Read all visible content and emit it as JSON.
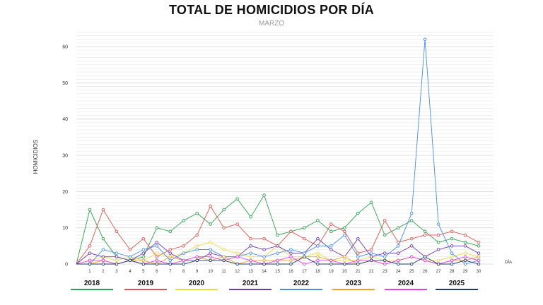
{
  "chart_data": {
    "type": "line",
    "title": "TOTAL DE HOMICIDIOS POR DÍA",
    "subtitle": "MARZO",
    "xlabel": "DÍA",
    "ylabel": "HOMICIDIOS",
    "ylim": [
      0,
      65
    ],
    "y_ticks": [
      0,
      10,
      20,
      30,
      40,
      50,
      60
    ],
    "x": [
      0,
      1,
      2,
      3,
      4,
      5,
      6,
      7,
      8,
      9,
      10,
      11,
      12,
      13,
      14,
      15,
      16,
      17,
      18,
      19,
      20,
      21,
      22,
      23,
      24,
      25,
      26,
      27,
      28,
      29,
      30
    ],
    "x_tick_labels": [
      "1",
      "2",
      "3",
      "4",
      "5",
      "6",
      "7",
      "8",
      "9",
      "10",
      "11",
      "12",
      "13",
      "14",
      "15",
      "16",
      "17",
      "18",
      "19",
      "20",
      "21",
      "22",
      "23",
      "24",
      "25",
      "26",
      "27",
      "28",
      "29",
      "30"
    ],
    "grid": true,
    "legend_position": "bottom",
    "series": [
      {
        "name": "2018",
        "color": "#2e9e4f",
        "values": [
          0,
          15,
          7,
          2,
          1,
          2,
          10,
          9,
          12,
          14,
          11,
          15,
          18,
          13,
          19,
          8,
          9,
          10,
          12,
          9,
          10,
          14,
          17,
          8,
          10,
          12,
          9,
          6,
          7,
          6,
          5
        ]
      },
      {
        "name": "2019",
        "color": "#d9534f",
        "values": [
          0,
          5,
          15,
          9,
          4,
          7,
          2,
          4,
          5,
          8,
          16,
          10,
          11,
          7,
          7,
          5,
          9,
          7,
          5,
          11,
          9,
          3,
          4,
          12,
          6,
          7,
          8,
          8,
          9,
          8,
          6
        ]
      },
      {
        "name": "2020",
        "color": "#e8d84a",
        "values": [
          0,
          1,
          2,
          1,
          2,
          1,
          3,
          2,
          3,
          5,
          6,
          4,
          3,
          2,
          2,
          5,
          2,
          2,
          3,
          1,
          1,
          1,
          2,
          1,
          1,
          2,
          1,
          1,
          2,
          3,
          2
        ]
      },
      {
        "name": "2021",
        "color": "#6a3aa8",
        "values": [
          0,
          3,
          2,
          2,
          1,
          3,
          6,
          3,
          1,
          1,
          3,
          2,
          2,
          5,
          4,
          5,
          3,
          3,
          7,
          4,
          2,
          7,
          2,
          3,
          3,
          5,
          2,
          4,
          5,
          5,
          3
        ]
      },
      {
        "name": "2022",
        "color": "#4a8ee0",
        "values": [
          0,
          0,
          4,
          3,
          2,
          4,
          5,
          1,
          3,
          4,
          4,
          2,
          2,
          3,
          2,
          3,
          4,
          3,
          5,
          5,
          8,
          2,
          3,
          2,
          5,
          14,
          62,
          11,
          3,
          0,
          1
        ]
      },
      {
        "name": "2023",
        "color": "#f0a030",
        "values": [
          0,
          0,
          1,
          0,
          1,
          1,
          0,
          2,
          1,
          2,
          1,
          2,
          0,
          1,
          1,
          1,
          1,
          2,
          2,
          1,
          2,
          0,
          1,
          0,
          1,
          2,
          1,
          0,
          1,
          1,
          2
        ]
      },
      {
        "name": "2024",
        "color": "#e040e0",
        "values": [
          0,
          1,
          1,
          0,
          1,
          0,
          1,
          0,
          1,
          2,
          2,
          1,
          2,
          1,
          0,
          1,
          2,
          0,
          1,
          1,
          0,
          1,
          1,
          0,
          1,
          2,
          1,
          0,
          1,
          2,
          1
        ]
      },
      {
        "name": "2025",
        "color": "#1f3a66",
        "values": [
          0,
          0,
          0,
          0,
          1,
          0,
          0,
          0,
          0,
          1,
          1,
          1,
          0,
          0,
          0,
          0,
          0,
          2,
          0,
          0,
          0,
          0,
          1,
          1,
          0,
          0,
          2,
          0,
          0,
          1,
          0
        ]
      }
    ]
  }
}
